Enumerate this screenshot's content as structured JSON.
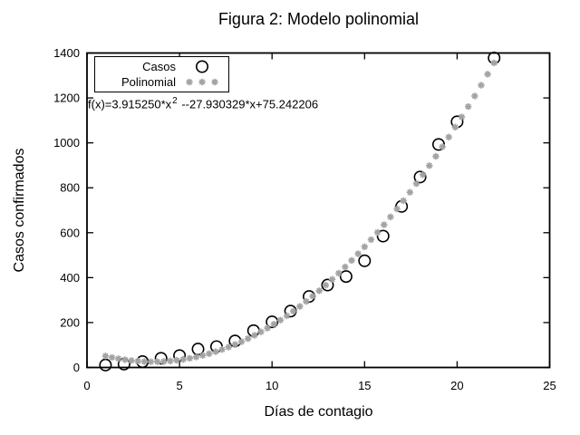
{
  "chart_data": {
    "type": "scatter",
    "title": "Figura 2: Modelo polinomial",
    "xlabel": "Días de contagio",
    "ylabel": "Casos confirmados",
    "xlim": [
      0,
      25
    ],
    "ylim": [
      0,
      1400
    ],
    "xticks": [
      0,
      5,
      10,
      15,
      20,
      25
    ],
    "yticks": [
      0,
      200,
      400,
      600,
      800,
      1000,
      1200,
      1400
    ],
    "grid": false,
    "background_color": "#ffffff",
    "axis_color": "#000000",
    "legend": {
      "position": "top-left",
      "border": true,
      "entries": [
        {
          "label": "Casos",
          "marker": "open-circle",
          "color": "#000000"
        },
        {
          "label": "Polinomial",
          "marker": "asterisk",
          "color": "#a3a3a3"
        }
      ]
    },
    "annotation": {
      "text": "f(x)=3.915250*x^2 --27.930329*x+75.242206",
      "prefix": "f(x)=3.915250*x",
      "sup": "2",
      "suffix": " --27.930329*x+75.242206"
    },
    "series": [
      {
        "name": "Casos",
        "type": "points",
        "marker": "open-circle",
        "color": "#000000",
        "points": [
          [
            1,
            11
          ],
          [
            2,
            15
          ],
          [
            3,
            26
          ],
          [
            4,
            41
          ],
          [
            5,
            53
          ],
          [
            6,
            82
          ],
          [
            7,
            93
          ],
          [
            8,
            118
          ],
          [
            9,
            164
          ],
          [
            10,
            203
          ],
          [
            11,
            251
          ],
          [
            12,
            316
          ],
          [
            13,
            367
          ],
          [
            14,
            405
          ],
          [
            15,
            475
          ],
          [
            16,
            585
          ],
          [
            17,
            717
          ],
          [
            18,
            848
          ],
          [
            19,
            993
          ],
          [
            20,
            1094
          ],
          [
            22,
            1378
          ]
        ]
      },
      {
        "name": "Polinomial",
        "type": "function-points",
        "marker": "asterisk",
        "color": "#a3a3a3",
        "coefficients": {
          "a": 3.91525,
          "b": -27.930329,
          "c": 75.242206
        },
        "sample_start": 1,
        "sample_end": 22.05,
        "sample_step": 0.35
      }
    ]
  }
}
